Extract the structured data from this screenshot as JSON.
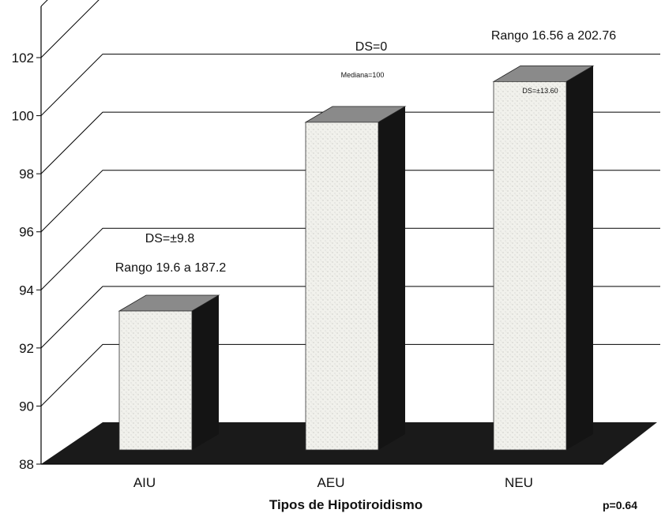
{
  "chart_data": {
    "type": "bar",
    "title": "",
    "xlabel": "Tipos de Hipotiroidismo",
    "ylabel": "",
    "ylim": [
      88,
      102
    ],
    "yticks": [
      88,
      90,
      92,
      94,
      96,
      98,
      100,
      102
    ],
    "categories": [
      "AIU",
      "AEU",
      "NEU"
    ],
    "values": [
      93.6,
      100.1,
      101.5
    ],
    "grid": true,
    "style": "3d",
    "colors": {
      "bar_face": "#f1f1ec",
      "bar_side": "#141414",
      "floor": "#1a1a1a",
      "grid": "#000000"
    },
    "annotations": [
      {
        "category": "AIU",
        "lines": [
          "DS=±9.8",
          "Rango 19.6 a 187.2"
        ]
      },
      {
        "category": "AEU",
        "lines": [
          "DS=0",
          "Mediana=100"
        ]
      },
      {
        "category": "NEU",
        "lines": [
          "Rango 16.56 a 202.76",
          "DS=±13.60"
        ]
      }
    ],
    "footnote": "p=0.64"
  }
}
